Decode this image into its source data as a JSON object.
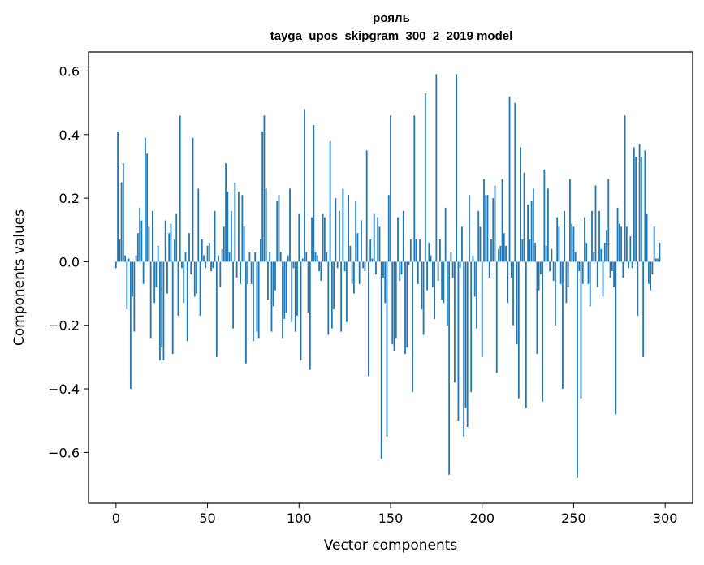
{
  "chart_data": {
    "type": "bar",
    "title": "рояль",
    "subtitle": "tayga_upos_skipgram_300_2_2019 model",
    "xlabel": "Vector components",
    "ylabel": "Components values",
    "xlim": [
      -15,
      315
    ],
    "ylim": [
      -0.76,
      0.66
    ],
    "xticks": [
      0,
      50,
      100,
      150,
      200,
      250,
      300
    ],
    "yticks": [
      -0.6,
      -0.4,
      -0.2,
      0.0,
      0.2,
      0.4,
      0.6
    ],
    "xtick_labels": [
      "0",
      "50",
      "100",
      "150",
      "200",
      "250",
      "300"
    ],
    "ytick_labels": [
      "−0.6",
      "−0.4",
      "−0.2",
      "0.0",
      "0.2",
      "0.4",
      "0.6"
    ],
    "bar_color": "#1f77b4",
    "grid": false,
    "values": [
      -0.02,
      0.41,
      0.07,
      0.25,
      0.31,
      0.02,
      -0.15,
      0.01,
      -0.4,
      -0.11,
      -0.22,
      0.02,
      0.09,
      0.17,
      0.13,
      -0.07,
      0.39,
      0.34,
      0.11,
      -0.24,
      0.16,
      -0.13,
      -0.08,
      0.05,
      -0.31,
      -0.27,
      -0.31,
      0.13,
      -0.1,
      0.09,
      0.12,
      -0.29,
      0.07,
      0.15,
      -0.17,
      0.46,
      -0.02,
      -0.13,
      0.03,
      -0.25,
      0.09,
      -0.04,
      0.39,
      -0.11,
      -0.1,
      0.23,
      -0.17,
      0.07,
      0.02,
      -0.02,
      0.05,
      0.06,
      -0.03,
      -0.02,
      0.16,
      -0.3,
      0.02,
      -0.08,
      0.04,
      0.11,
      0.31,
      0.22,
      0.03,
      0.16,
      -0.21,
      0.25,
      -0.05,
      0.22,
      -0.07,
      0.21,
      0.11,
      -0.32,
      -0.07,
      0.03,
      -0.07,
      -0.25,
      0.03,
      -0.22,
      -0.24,
      0.07,
      0.41,
      0.46,
      0.23,
      -0.12,
      0.03,
      -0.22,
      -0.14,
      -0.09,
      0.19,
      0.21,
      0.03,
      -0.24,
      -0.18,
      -0.16,
      0.02,
      0.23,
      -0.19,
      -0.02,
      -0.22,
      -0.17,
      0.15,
      -0.31,
      0.01,
      0.48,
      0.03,
      -0.16,
      -0.34,
      0.14,
      0.43,
      0.03,
      0.02,
      -0.03,
      -0.06,
      0.15,
      0.14,
      0.03,
      -0.23,
      0.38,
      -0.21,
      -0.15,
      0.2,
      -0.02,
      0.16,
      -0.22,
      0.23,
      -0.03,
      -0.19,
      0.21,
      0.05,
      -0.07,
      -0.1,
      0.19,
      0.09,
      -0.07,
      0.13,
      -0.02,
      -0.03,
      0.35,
      -0.36,
      0.07,
      0.01,
      0.15,
      -0.04,
      0.14,
      0.11,
      -0.62,
      -0.05,
      -0.13,
      -0.55,
      0.21,
      0.46,
      -0.26,
      -0.28,
      -0.24,
      0.14,
      -0.06,
      -0.04,
      0.16,
      -0.29,
      -0.27,
      -0.01,
      0.07,
      -0.41,
      0.46,
      0.07,
      -0.07,
      0.07,
      -0.15,
      -0.23,
      0.53,
      -0.09,
      0.06,
      0.02,
      -0.08,
      -0.18,
      0.59,
      -0.06,
      0.07,
      -0.12,
      -0.13,
      0.17,
      -0.2,
      -0.67,
      0.03,
      -0.05,
      -0.38,
      0.59,
      -0.5,
      -0.02,
      0.11,
      -0.55,
      -0.46,
      -0.52,
      0.21,
      -0.41,
      0.02,
      -0.11,
      -0.21,
      0.16,
      0.11,
      -0.3,
      0.26,
      0.21,
      0.21,
      -0.05,
      0.07,
      0.2,
      0.24,
      -0.35,
      0.04,
      0.05,
      0.26,
      0.09,
      0.05,
      -0.13,
      0.52,
      -0.05,
      -0.2,
      0.5,
      -0.26,
      -0.43,
      0.36,
      0.07,
      0.28,
      -0.46,
      0.18,
      0.07,
      0.19,
      0.23,
      0.06,
      -0.29,
      -0.09,
      -0.04,
      -0.44,
      0.29,
      0.05,
      0.23,
      -0.03,
      0.04,
      -0.06,
      -0.2,
      0.14,
      0.11,
      -0.07,
      -0.4,
      0.16,
      -0.13,
      -0.08,
      0.26,
      0.12,
      0.11,
      0.03,
      -0.68,
      -0.03,
      -0.43,
      -0.07,
      0.14,
      0.06,
      -0.07,
      -0.14,
      0.16,
      0.03,
      0.24,
      -0.08,
      0.16,
      0.04,
      -0.11,
      0.06,
      0.1,
      0.26,
      -0.05,
      -0.03,
      -0.08,
      -0.48,
      0.17,
      0.12,
      0.11,
      -0.05,
      0.46,
      0.11,
      -0.02,
      0.08,
      -0.02,
      0.36,
      0.33,
      -0.17,
      0.37,
      0.33,
      -0.3,
      0.35,
      0.15,
      -0.07,
      -0.09,
      -0.04,
      0.11,
      0.01,
      0.01,
      0.06
    ]
  }
}
